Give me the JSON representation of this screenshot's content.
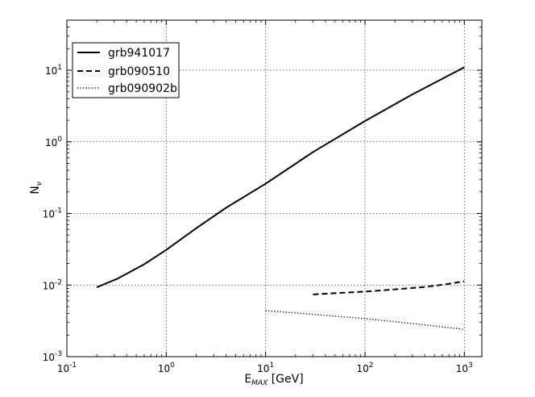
{
  "chart_data": {
    "type": "line",
    "xscale": "log",
    "yscale": "log",
    "xlim": [
      0.1,
      1500
    ],
    "ylim": [
      0.001,
      50
    ],
    "grid": true,
    "legend_position": "top-left",
    "xlabel_main": "E",
    "xlabel_sub": "MAX",
    "xlabel_unit": " [GeV]",
    "ylabel_main": "N",
    "ylabel_sub": "ν",
    "x_ticks": [
      {
        "value": 0.1,
        "base": "10",
        "exp": "-1"
      },
      {
        "value": 1,
        "base": "10",
        "exp": "0"
      },
      {
        "value": 10,
        "base": "10",
        "exp": "1"
      },
      {
        "value": 100,
        "base": "10",
        "exp": "2"
      },
      {
        "value": 1000,
        "base": "10",
        "exp": "3"
      }
    ],
    "y_ticks": [
      {
        "value": 0.001,
        "base": "10",
        "exp": "-3"
      },
      {
        "value": 0.01,
        "base": "10",
        "exp": "-2"
      },
      {
        "value": 0.1,
        "base": "10",
        "exp": "-1"
      },
      {
        "value": 1,
        "base": "10",
        "exp": "0"
      },
      {
        "value": 10,
        "base": "10",
        "exp": "1"
      }
    ],
    "series": [
      {
        "name": "grb941017",
        "style": "solid",
        "x": [
          0.2,
          0.32,
          0.6,
          1,
          2,
          4,
          10,
          30,
          100,
          300,
          1000
        ],
        "y": [
          0.0093,
          0.0122,
          0.0195,
          0.031,
          0.062,
          0.12,
          0.26,
          0.72,
          1.95,
          4.6,
          11
        ]
      },
      {
        "name": "grb090510",
        "style": "dashed",
        "x": [
          30,
          50,
          100,
          200,
          400,
          700,
          1000
        ],
        "y": [
          0.0074,
          0.0077,
          0.0081,
          0.0087,
          0.0094,
          0.0104,
          0.0113
        ]
      },
      {
        "name": "grb090902b",
        "style": "dotted",
        "x": [
          10,
          30,
          100,
          300,
          1000
        ],
        "y": [
          0.0044,
          0.0039,
          0.0034,
          0.0029,
          0.0024
        ]
      }
    ]
  }
}
